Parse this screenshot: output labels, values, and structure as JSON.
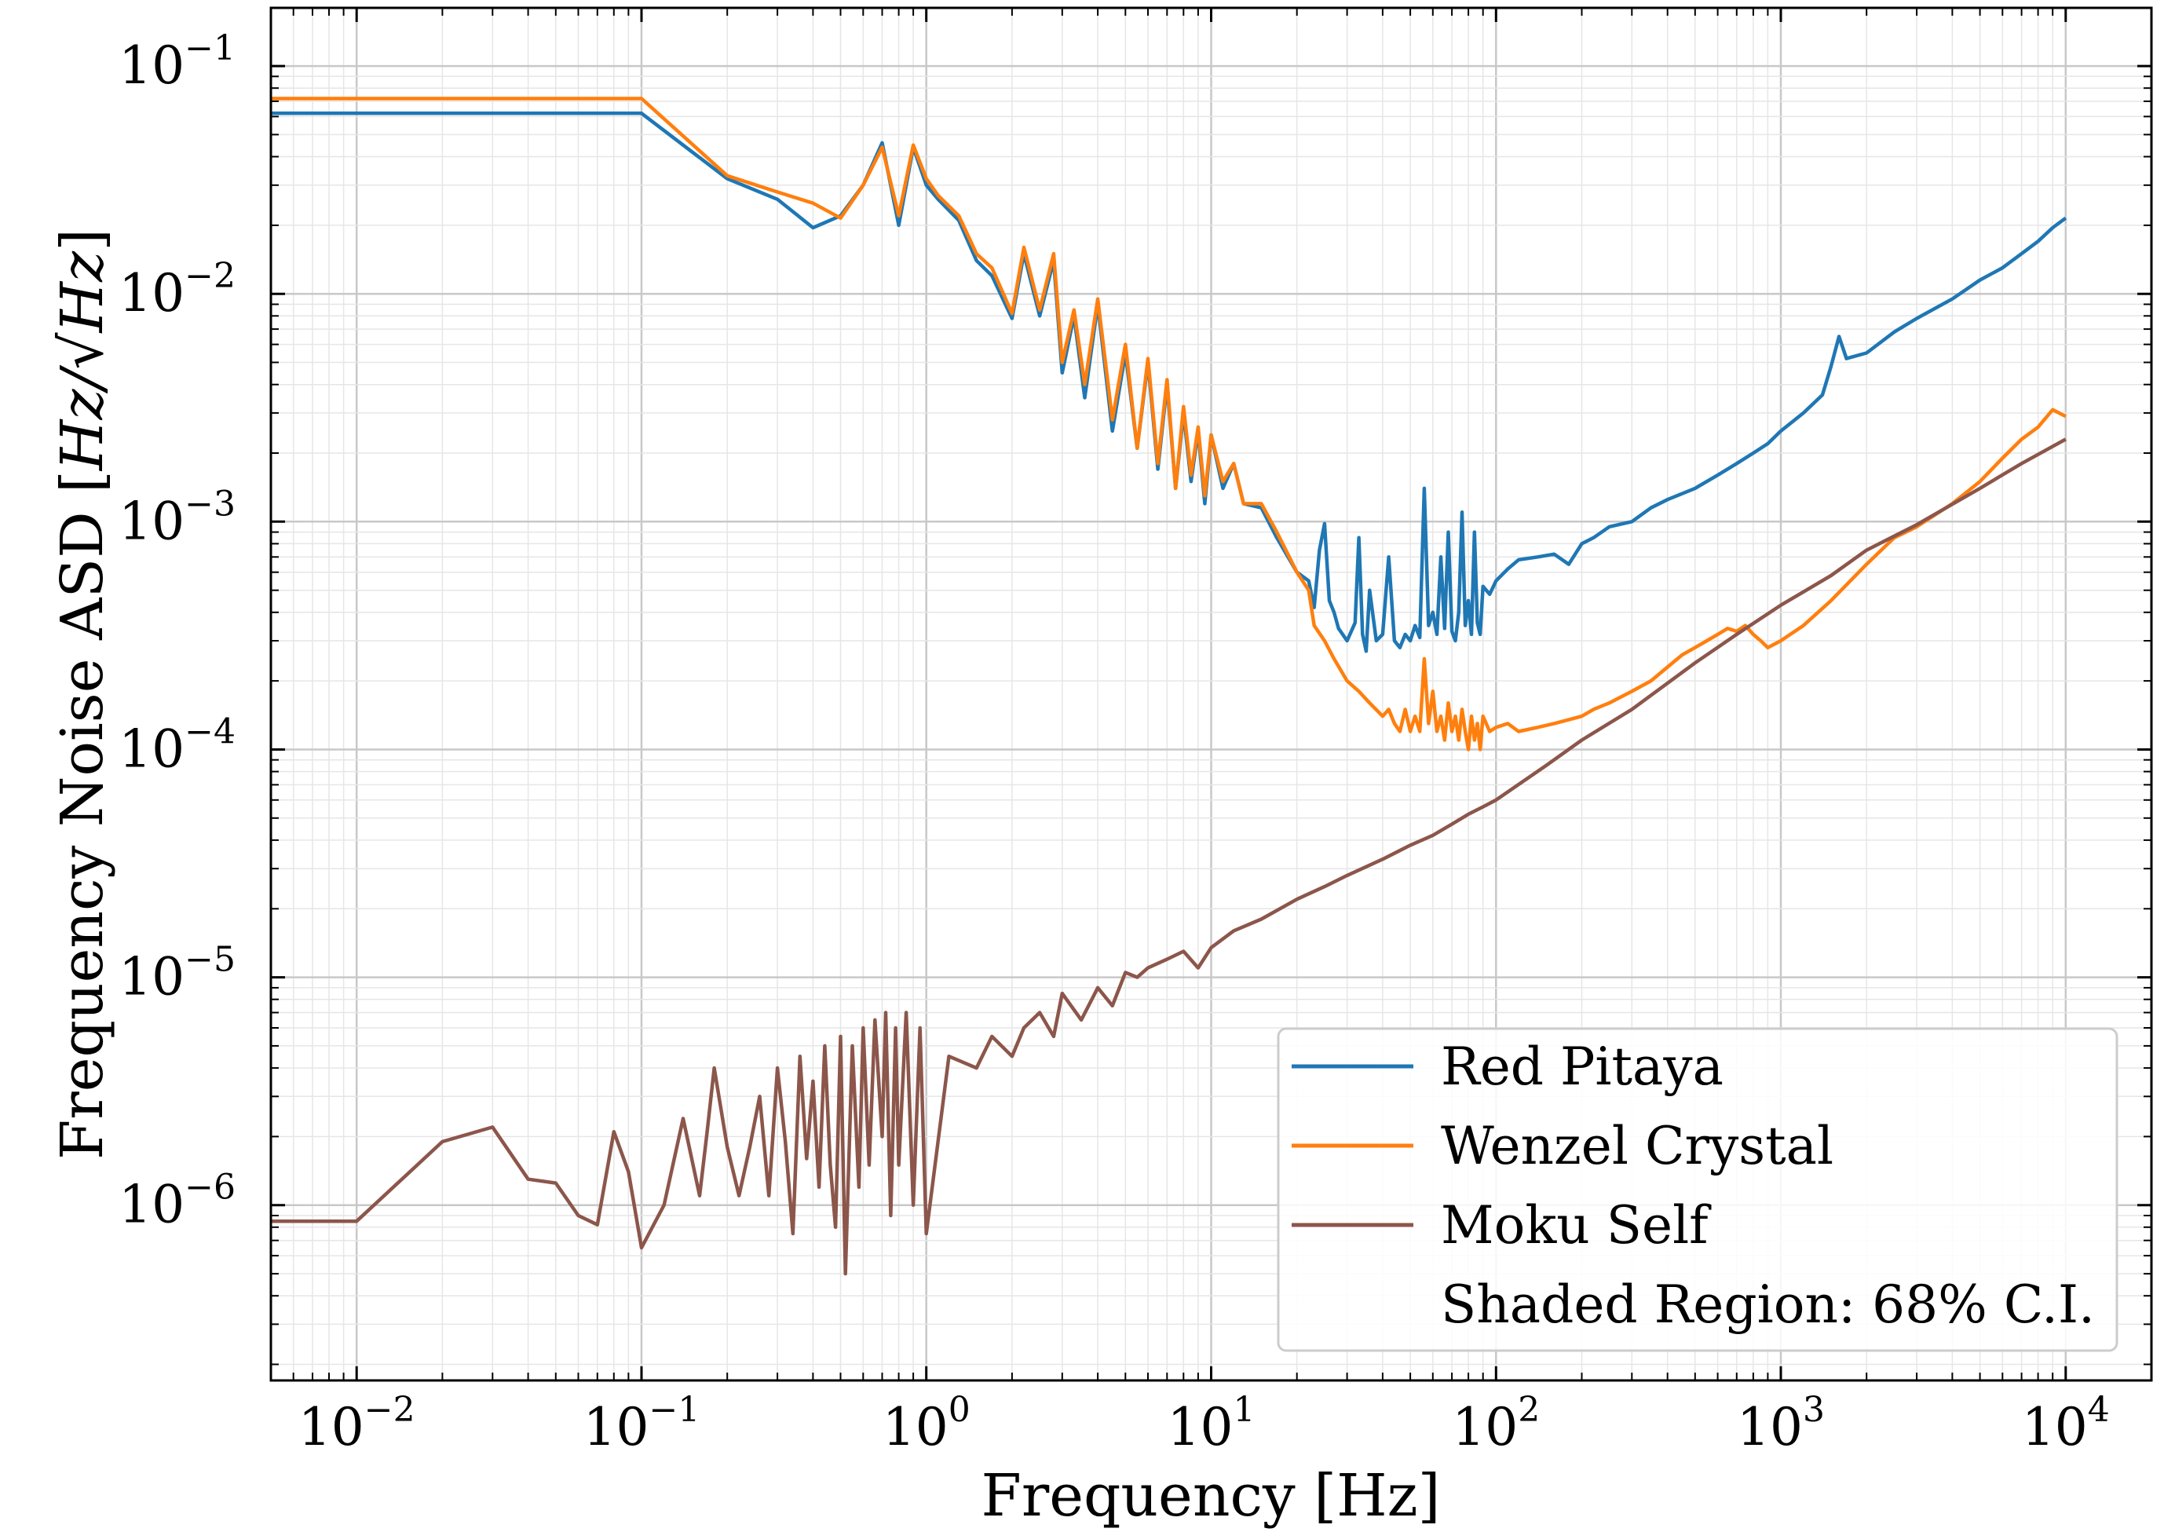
{
  "chart_data": {
    "type": "line",
    "title": "",
    "xlabel": "Frequency [Hz]",
    "ylabel_prefix": "Frequency Noise ASD [",
    "ylabel_unit": "Hz/√Hz",
    "ylabel_suffix": "]",
    "x_scale": "log",
    "y_scale": "log",
    "xlim": [
      0.005,
      20000
    ],
    "ylim": [
      1.7e-07,
      0.18
    ],
    "grid": true,
    "legend_position": "bottom-right",
    "legend_note": "Shaded Region: 68% C.I.",
    "x_ticks": [
      {
        "base": "10",
        "exp": "−2",
        "value": 0.01
      },
      {
        "base": "10",
        "exp": "−1",
        "value": 0.1
      },
      {
        "base": "10",
        "exp": "0",
        "value": 1
      },
      {
        "base": "10",
        "exp": "1",
        "value": 10
      },
      {
        "base": "10",
        "exp": "2",
        "value": 100
      },
      {
        "base": "10",
        "exp": "3",
        "value": 1000
      },
      {
        "base": "10",
        "exp": "4",
        "value": 10000
      }
    ],
    "y_ticks": [
      {
        "base": "10",
        "exp": "−6",
        "value": 1e-06
      },
      {
        "base": "10",
        "exp": "−5",
        "value": 1e-05
      },
      {
        "base": "10",
        "exp": "−4",
        "value": 0.0001
      },
      {
        "base": "10",
        "exp": "−3",
        "value": 0.001
      },
      {
        "base": "10",
        "exp": "−2",
        "value": 0.01
      },
      {
        "base": "10",
        "exp": "−1",
        "value": 0.1
      }
    ],
    "series": [
      {
        "name": "Red Pitaya",
        "color": "#1f77b4",
        "x": [
          0.005,
          0.01,
          0.02,
          0.05,
          0.1,
          0.2,
          0.3,
          0.4,
          0.5,
          0.6,
          0.7,
          0.8,
          0.9,
          1.0,
          1.1,
          1.3,
          1.5,
          1.7,
          2.0,
          2.2,
          2.5,
          2.8,
          3.0,
          3.3,
          3.6,
          4.0,
          4.5,
          5.0,
          5.5,
          6.0,
          6.5,
          7.0,
          7.5,
          8.0,
          8.5,
          9.0,
          9.5,
          10,
          11,
          12,
          13,
          15,
          17,
          20,
          22,
          23,
          24,
          25,
          26,
          27,
          28,
          30,
          32,
          33,
          34,
          35,
          36,
          38,
          40,
          42,
          44,
          46,
          48,
          50,
          52,
          54,
          56,
          58,
          60,
          62,
          64,
          66,
          68,
          70,
          72,
          74,
          76,
          78,
          80,
          82,
          84,
          86,
          88,
          90,
          95,
          100,
          110,
          120,
          140,
          160,
          180,
          200,
          220,
          250,
          300,
          350,
          400,
          500,
          600,
          700,
          800,
          900,
          1000,
          1200,
          1400,
          1500,
          1600,
          1700,
          2000,
          2500,
          3000,
          4000,
          5000,
          6000,
          7000,
          8000,
          9000,
          10000
        ],
        "values": [
          0.062,
          0.062,
          0.062,
          0.062,
          0.062,
          0.032,
          0.026,
          0.0195,
          0.022,
          0.03,
          0.046,
          0.02,
          0.044,
          0.03,
          0.026,
          0.021,
          0.014,
          0.012,
          0.0078,
          0.015,
          0.008,
          0.014,
          0.0045,
          0.008,
          0.0035,
          0.009,
          0.0025,
          0.0055,
          0.0021,
          0.005,
          0.0017,
          0.004,
          0.0014,
          0.003,
          0.0015,
          0.0025,
          0.0012,
          0.0024,
          0.0014,
          0.0018,
          0.0012,
          0.00115,
          0.00085,
          0.0006,
          0.00055,
          0.00042,
          0.00075,
          0.00098,
          0.00045,
          0.0004,
          0.00034,
          0.0003,
          0.00036,
          0.00085,
          0.00032,
          0.00027,
          0.0005,
          0.0003,
          0.00032,
          0.0007,
          0.0003,
          0.00028,
          0.00032,
          0.0003,
          0.00035,
          0.00031,
          0.0014,
          0.00035,
          0.0004,
          0.00032,
          0.0007,
          0.00034,
          0.0009,
          0.00033,
          0.0003,
          0.0004,
          0.0011,
          0.00035,
          0.00045,
          0.00032,
          0.0009,
          0.00036,
          0.00032,
          0.00052,
          0.00048,
          0.00055,
          0.00062,
          0.00068,
          0.0007,
          0.00072,
          0.00065,
          0.0008,
          0.00085,
          0.00095,
          0.001,
          0.00115,
          0.00125,
          0.0014,
          0.0016,
          0.0018,
          0.002,
          0.0022,
          0.0025,
          0.003,
          0.0036,
          0.0048,
          0.0065,
          0.0052,
          0.0055,
          0.0068,
          0.0078,
          0.0095,
          0.0115,
          0.013,
          0.015,
          0.017,
          0.0195,
          0.0215
        ]
      },
      {
        "name": "Wenzel Crystal",
        "color": "#ff7f0e",
        "x": [
          0.005,
          0.01,
          0.02,
          0.05,
          0.1,
          0.2,
          0.3,
          0.4,
          0.5,
          0.6,
          0.7,
          0.8,
          0.9,
          1.0,
          1.1,
          1.3,
          1.5,
          1.7,
          2.0,
          2.2,
          2.5,
          2.8,
          3.0,
          3.3,
          3.6,
          4.0,
          4.5,
          5.0,
          5.5,
          6.0,
          6.5,
          7.0,
          7.5,
          8.0,
          8.5,
          9.0,
          9.5,
          10,
          11,
          12,
          13,
          15,
          17,
          20,
          22,
          23,
          25,
          27,
          30,
          33,
          36,
          40,
          42,
          44,
          46,
          48,
          50,
          52,
          54,
          56,
          58,
          60,
          62,
          64,
          66,
          68,
          70,
          72,
          74,
          76,
          78,
          80,
          82,
          84,
          86,
          88,
          90,
          95,
          100,
          110,
          120,
          140,
          160,
          180,
          200,
          220,
          250,
          300,
          350,
          400,
          450,
          500,
          550,
          600,
          650,
          700,
          750,
          800,
          850,
          900,
          1000,
          1200,
          1500,
          2000,
          2500,
          3000,
          4000,
          5000,
          6000,
          7000,
          8000,
          9000,
          10000
        ],
        "values": [
          0.072,
          0.072,
          0.072,
          0.072,
          0.072,
          0.033,
          0.028,
          0.025,
          0.0215,
          0.03,
          0.044,
          0.022,
          0.045,
          0.032,
          0.027,
          0.022,
          0.015,
          0.013,
          0.0082,
          0.016,
          0.0085,
          0.015,
          0.005,
          0.0085,
          0.004,
          0.0095,
          0.0028,
          0.006,
          0.0021,
          0.0052,
          0.0018,
          0.0042,
          0.0014,
          0.0032,
          0.0016,
          0.0026,
          0.0013,
          0.0024,
          0.0015,
          0.0018,
          0.0012,
          0.0012,
          0.0009,
          0.0006,
          0.0005,
          0.00035,
          0.0003,
          0.00025,
          0.0002,
          0.00018,
          0.00016,
          0.00014,
          0.00015,
          0.00013,
          0.00012,
          0.00015,
          0.00012,
          0.00014,
          0.00012,
          0.00025,
          0.00013,
          0.00018,
          0.00012,
          0.00014,
          0.00011,
          0.00016,
          0.00012,
          0.00014,
          0.00011,
          0.00015,
          0.00012,
          0.0001,
          0.00014,
          0.00011,
          0.00013,
          0.0001,
          0.00014,
          0.00012,
          0.000125,
          0.00013,
          0.00012,
          0.000125,
          0.00013,
          0.000135,
          0.00014,
          0.00015,
          0.00016,
          0.00018,
          0.0002,
          0.00023,
          0.00026,
          0.00028,
          0.0003,
          0.00032,
          0.00034,
          0.00033,
          0.00035,
          0.00032,
          0.0003,
          0.00028,
          0.0003,
          0.00035,
          0.00045,
          0.00065,
          0.00085,
          0.00095,
          0.0012,
          0.0015,
          0.0019,
          0.0023,
          0.0026,
          0.0031,
          0.0029
        ]
      },
      {
        "name": "Moku Self",
        "color": "#8c564b",
        "x": [
          0.005,
          0.01,
          0.02,
          0.03,
          0.04,
          0.05,
          0.06,
          0.07,
          0.08,
          0.09,
          0.1,
          0.12,
          0.14,
          0.16,
          0.17,
          0.18,
          0.2,
          0.22,
          0.24,
          0.26,
          0.28,
          0.3,
          0.32,
          0.34,
          0.36,
          0.38,
          0.4,
          0.42,
          0.44,
          0.46,
          0.48,
          0.5,
          0.52,
          0.55,
          0.58,
          0.6,
          0.63,
          0.66,
          0.7,
          0.72,
          0.75,
          0.78,
          0.8,
          0.85,
          0.9,
          0.95,
          1.0,
          1.2,
          1.5,
          1.7,
          2.0,
          2.2,
          2.5,
          2.8,
          3.0,
          3.5,
          4.0,
          4.5,
          5.0,
          5.5,
          6.0,
          7.0,
          8.0,
          9.0,
          10,
          12,
          15,
          20,
          25,
          30,
          40,
          50,
          60,
          70,
          80,
          90,
          100,
          150,
          200,
          300,
          500,
          700,
          1000,
          1500,
          2000,
          3000,
          5000,
          7000,
          10000
        ],
        "values": [
          8.5e-07,
          8.5e-07,
          1.9e-06,
          2.2e-06,
          1.3e-06,
          1.25e-06,
          9e-07,
          8.2e-07,
          2.1e-06,
          1.4e-06,
          6.5e-07,
          1e-06,
          2.4e-06,
          1.1e-06,
          2.1e-06,
          4e-06,
          1.8e-06,
          1.1e-06,
          1.8e-06,
          3e-06,
          1.1e-06,
          4e-06,
          1.9e-06,
          7.5e-07,
          4.5e-06,
          1.6e-06,
          3.5e-06,
          1.2e-06,
          5e-06,
          1.5e-06,
          8e-07,
          5.5e-06,
          5e-07,
          5e-06,
          1.2e-06,
          6e-06,
          1.5e-06,
          6.5e-06,
          2e-06,
          7e-06,
          9e-07,
          6e-06,
          1.5e-06,
          7e-06,
          1e-06,
          6e-06,
          7.5e-07,
          4.5e-06,
          4e-06,
          5.5e-06,
          4.5e-06,
          6e-06,
          7e-06,
          5.5e-06,
          8.5e-06,
          6.5e-06,
          9e-06,
          7.5e-06,
          1.05e-05,
          1e-05,
          1.1e-05,
          1.2e-05,
          1.3e-05,
          1.1e-05,
          1.35e-05,
          1.6e-05,
          1.8e-05,
          2.2e-05,
          2.5e-05,
          2.8e-05,
          3.3e-05,
          3.8e-05,
          4.2e-05,
          4.7e-05,
          5.2e-05,
          5.6e-05,
          6e-05,
          8.5e-05,
          0.00011,
          0.00015,
          0.00024,
          0.00032,
          0.00043,
          0.00058,
          0.00075,
          0.00097,
          0.0014,
          0.0018,
          0.0023
        ]
      }
    ]
  }
}
